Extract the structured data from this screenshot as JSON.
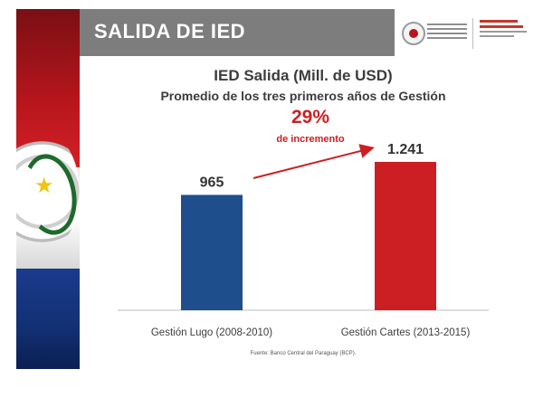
{
  "header": {
    "title": "SALIDA DE IED"
  },
  "chart_data": {
    "type": "bar",
    "title": "IED Salida (Mill. de USD)",
    "subtitle": "Promedio de los tres primeros años de Gestión",
    "categories": [
      "Gestión Lugo (2008-2010)",
      "Gestión Cartes (2013-2015)"
    ],
    "values": [
      965,
      1241
    ],
    "value_labels": [
      "965",
      "1.241"
    ],
    "colors": [
      "#1f4e8c",
      "#cc1f24"
    ],
    "ylim": [
      0,
      1400
    ],
    "grid": false,
    "legend": "none",
    "annotation": {
      "value": "29%",
      "label": "de incremento",
      "color": "#cc1f24"
    }
  },
  "footer": {
    "source": "Fuente: Banco Central del Paraguay (BCP)."
  }
}
